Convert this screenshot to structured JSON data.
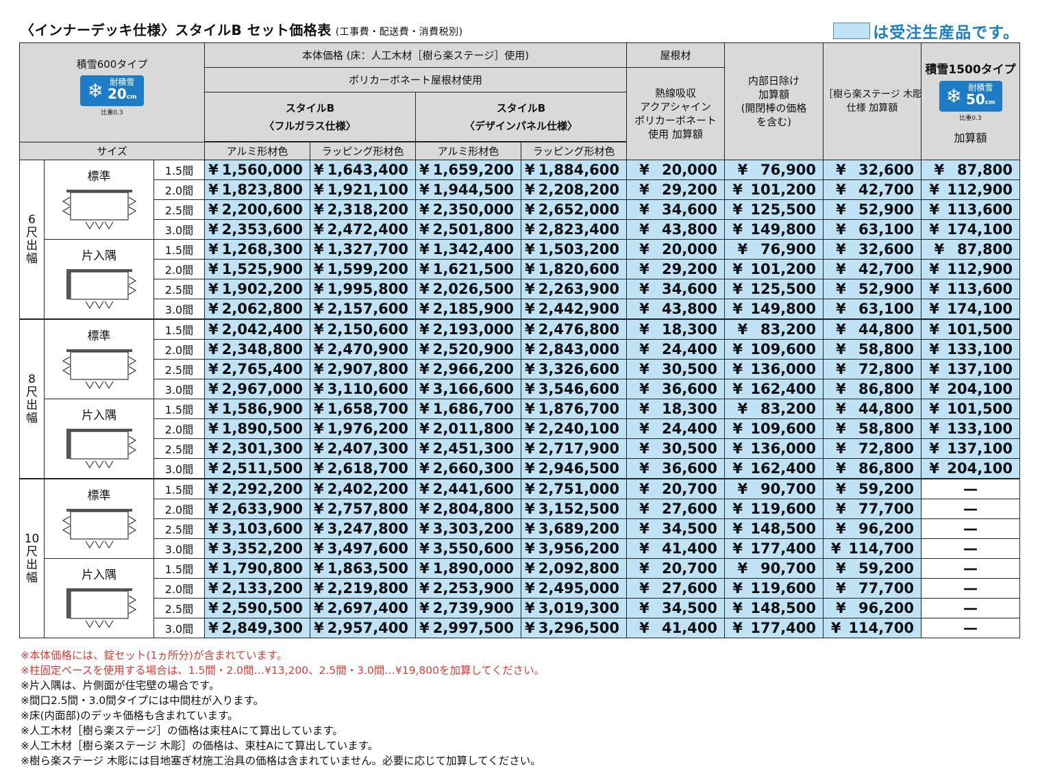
{
  "title": "〈インナーデッキ仕様〉スタイルB セット価格表",
  "title_sub": "(工事費・配送費・消費税別)",
  "legend": "は受注生産品です。",
  "colors": {
    "highlight": "#bfe3f4",
    "header": "#d9d9d9",
    "accent": "#1a7fc4",
    "note_red": "#e03c31"
  },
  "header": {
    "snow600": "積雪600タイプ",
    "snow600_badge": {
      "label": "耐積雪",
      "value": "20",
      "unit": "cm",
      "ratio": "比重0.3"
    },
    "size": "サイズ",
    "body_price": "本体価格 (床：人工木材［樹ら楽ステージ］使用)",
    "roof": "屋根材",
    "polycarbonate": "ポリカーボネート屋根材使用",
    "style_full": "スタイルB\n〈フルガラス仕様〉",
    "style_full_l1": "スタイルB",
    "style_full_l2": "〈フルガラス仕様〉",
    "style_design_l1": "スタイルB",
    "style_design_l2": "〈デザインパネル仕様〉",
    "alu": "アルミ形材色",
    "wrap": "ラッピング形材色",
    "heat_l1": "熱線吸収",
    "heat_l2": "アクアシャイン",
    "heat_l3": "ポリカーボネート",
    "heat_l4": "使用 加算額",
    "shade_l1": "内部日除け",
    "shade_l2": "加算額",
    "shade_l3": "(開閉棒の価格",
    "shade_l4": "を含む)",
    "wood_l1": "［樹ら楽ステージ 木彫］",
    "wood_l2": "仕様 加算額",
    "snow1500": "積雪1500タイプ",
    "snow1500_badge": {
      "label": "耐積雪",
      "value": "50",
      "unit": "cm",
      "ratio": "比重0.3"
    },
    "snow1500_add": "加算額"
  },
  "groups": [
    {
      "label": [
        "6",
        "尺",
        "出",
        "幅"
      ],
      "subs": [
        {
          "label": "標準",
          "icon": "deck-standard-icon",
          "rows": [
            [
              "1.5間",
              "¥",
              "1,560,000",
              "1,643,400",
              "1,659,200",
              "1,884,600",
              "20,000",
              "76,900",
              "32,600",
              "87,800"
            ],
            [
              "2.0間",
              "¥",
              "1,823,800",
              "1,921,100",
              "1,944,500",
              "2,208,200",
              "29,200",
              "101,200",
              "42,700",
              "112,900"
            ],
            [
              "2.5間",
              "¥",
              "2,200,600",
              "2,318,200",
              "2,350,000",
              "2,652,000",
              "34,600",
              "125,500",
              "52,900",
              "113,600"
            ],
            [
              "3.0間",
              "¥",
              "2,353,600",
              "2,472,400",
              "2,501,800",
              "2,823,400",
              "43,800",
              "149,800",
              "63,100",
              "174,100"
            ]
          ]
        },
        {
          "label": "片入隅",
          "icon": "deck-corner-icon",
          "rows": [
            [
              "1.5間",
              "¥",
              "1,268,300",
              "1,327,700",
              "1,342,400",
              "1,503,200",
              "20,000",
              "76,900",
              "32,600",
              "87,800"
            ],
            [
              "2.0間",
              "¥",
              "1,525,900",
              "1,599,200",
              "1,621,500",
              "1,820,600",
              "29,200",
              "101,200",
              "42,700",
              "112,900"
            ],
            [
              "2.5間",
              "¥",
              "1,902,200",
              "1,995,800",
              "2,026,500",
              "2,263,900",
              "34,600",
              "125,500",
              "52,900",
              "113,600"
            ],
            [
              "3.0間",
              "¥",
              "2,062,800",
              "2,157,600",
              "2,185,900",
              "2,442,900",
              "43,800",
              "149,800",
              "63,100",
              "174,100"
            ]
          ]
        }
      ]
    },
    {
      "label": [
        "8",
        "尺",
        "出",
        "幅"
      ],
      "subs": [
        {
          "label": "標準",
          "icon": "deck-standard-icon",
          "rows": [
            [
              "1.5間",
              "¥",
              "2,042,400",
              "2,150,600",
              "2,193,000",
              "2,476,800",
              "18,300",
              "83,200",
              "44,800",
              "101,500"
            ],
            [
              "2.0間",
              "¥",
              "2,348,800",
              "2,470,900",
              "2,520,900",
              "2,843,000",
              "24,400",
              "109,600",
              "58,800",
              "133,100"
            ],
            [
              "2.5間",
              "¥",
              "2,765,400",
              "2,907,800",
              "2,966,200",
              "3,326,600",
              "30,500",
              "136,000",
              "72,800",
              "137,100"
            ],
            [
              "3.0間",
              "¥",
              "2,967,000",
              "3,110,600",
              "3,166,600",
              "3,546,600",
              "36,600",
              "162,400",
              "86,800",
              "204,100"
            ]
          ]
        },
        {
          "label": "片入隅",
          "icon": "deck-corner-icon",
          "rows": [
            [
              "1.5間",
              "¥",
              "1,586,900",
              "1,658,700",
              "1,686,700",
              "1,876,700",
              "18,300",
              "83,200",
              "44,800",
              "101,500"
            ],
            [
              "2.0間",
              "¥",
              "1,890,500",
              "1,976,200",
              "2,011,800",
              "2,240,100",
              "24,400",
              "109,600",
              "58,800",
              "133,100"
            ],
            [
              "2.5間",
              "¥",
              "2,301,300",
              "2,407,300",
              "2,451,300",
              "2,717,900",
              "30,500",
              "136,000",
              "72,800",
              "137,100"
            ],
            [
              "3.0間",
              "¥",
              "2,511,500",
              "2,618,700",
              "2,660,300",
              "2,946,500",
              "36,600",
              "162,400",
              "86,800",
              "204,100"
            ]
          ]
        }
      ]
    },
    {
      "label": [
        "10",
        "尺",
        "出",
        "幅"
      ],
      "subs": [
        {
          "label": "標準",
          "icon": "deck-standard-icon",
          "rows": [
            [
              "1.5間",
              "¥",
              "2,292,200",
              "2,402,200",
              "2,441,600",
              "2,751,000",
              "20,700",
              "90,700",
              "59,200",
              "—"
            ],
            [
              "2.0間",
              "¥",
              "2,633,900",
              "2,757,800",
              "2,804,800",
              "3,152,500",
              "27,600",
              "119,600",
              "77,700",
              "—"
            ],
            [
              "2.5間",
              "¥",
              "3,103,600",
              "3,247,800",
              "3,303,200",
              "3,689,200",
              "34,500",
              "148,500",
              "96,200",
              "—"
            ],
            [
              "3.0間",
              "¥",
              "3,352,200",
              "3,497,600",
              "3,550,600",
              "3,956,200",
              "41,400",
              "177,400",
              "114,700",
              "—"
            ]
          ]
        },
        {
          "label": "片入隅",
          "icon": "deck-corner-icon",
          "rows": [
            [
              "1.5間",
              "¥",
              "1,790,800",
              "1,863,500",
              "1,890,000",
              "2,092,800",
              "20,700",
              "90,700",
              "59,200",
              "—"
            ],
            [
              "2.0間",
              "¥",
              "2,133,200",
              "2,219,800",
              "2,253,900",
              "2,495,000",
              "27,600",
              "119,600",
              "77,700",
              "—"
            ],
            [
              "2.5間",
              "¥",
              "2,590,500",
              "2,697,400",
              "2,739,900",
              "3,019,300",
              "34,500",
              "148,500",
              "96,200",
              "—"
            ],
            [
              "3.0間",
              "¥",
              "2,849,300",
              "2,957,400",
              "2,997,500",
              "3,296,500",
              "41,400",
              "177,400",
              "114,700",
              "—"
            ]
          ]
        }
      ]
    }
  ],
  "notes": [
    {
      "text": "※本体価格には、錠セット(1ヵ所分)が含まれています。",
      "red": true
    },
    {
      "text": "※柱固定ベースを使用する場合は、1.5間・2.0間…¥13,200、2.5間・3.0間…¥19,800を加算してください。",
      "red": true
    },
    {
      "text": "※片入隅は、片側面が住宅壁の場合です。",
      "red": false
    },
    {
      "text": "※間口2.5間・3.0間タイプには中間柱が入ります。",
      "red": false
    },
    {
      "text": "※床(内面部)のデッキ価格も含まれています。",
      "red": false
    },
    {
      "text": "※人工木材［樹ら楽ステージ］の価格は束柱Aにて算出しています。",
      "red": false
    },
    {
      "text": "※人工木材［樹ら楽ステージ 木彫］の価格は、束柱Aにて算出しています。",
      "red": false
    },
    {
      "text": "※樹ら楽ステージ 木彫には目地塞ぎ材施工治具の価格は含まれていません。必要に応じて加算してください。",
      "red": false
    }
  ]
}
